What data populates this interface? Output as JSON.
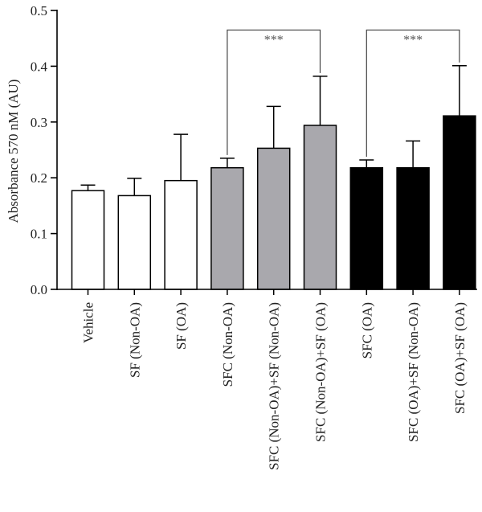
{
  "chart_data": {
    "type": "bar",
    "title": "",
    "xlabel": "",
    "ylabel": "Absorbance 570 nM (AU)",
    "ylim": [
      0,
      0.5
    ],
    "yticks": [
      "0.0",
      "0.1",
      "0.2",
      "0.3",
      "0.4",
      "0.5"
    ],
    "grid": false,
    "legend": "none",
    "categories": [
      "Vehicle",
      "SF (Non-OA)",
      "SF (OA)",
      "SFC (Non-OA)",
      "SFC (Non-OA)+SF (Non-OA)",
      "SFC (Non-OA)+SF (OA)",
      "SFC (OA)",
      "SFC (OA)+SF (Non-OA)",
      "SFC (OA)+SF (OA)"
    ],
    "values": [
      0.177,
      0.168,
      0.195,
      0.218,
      0.253,
      0.294,
      0.218,
      0.218,
      0.311
    ],
    "errors": [
      0.01,
      0.031,
      0.083,
      0.017,
      0.075,
      0.088,
      0.014,
      0.048,
      0.09
    ],
    "bar_colors": [
      "#ffffff",
      "#ffffff",
      "#ffffff",
      "#a9a8ad",
      "#a9a8ad",
      "#a9a8ad",
      "#000000",
      "#000000",
      "#000000"
    ],
    "significance": [
      {
        "from": 3,
        "to": 5,
        "level": 0.465,
        "label": "***"
      },
      {
        "from": 6,
        "to": 8,
        "level": 0.465,
        "label": "***"
      }
    ]
  }
}
